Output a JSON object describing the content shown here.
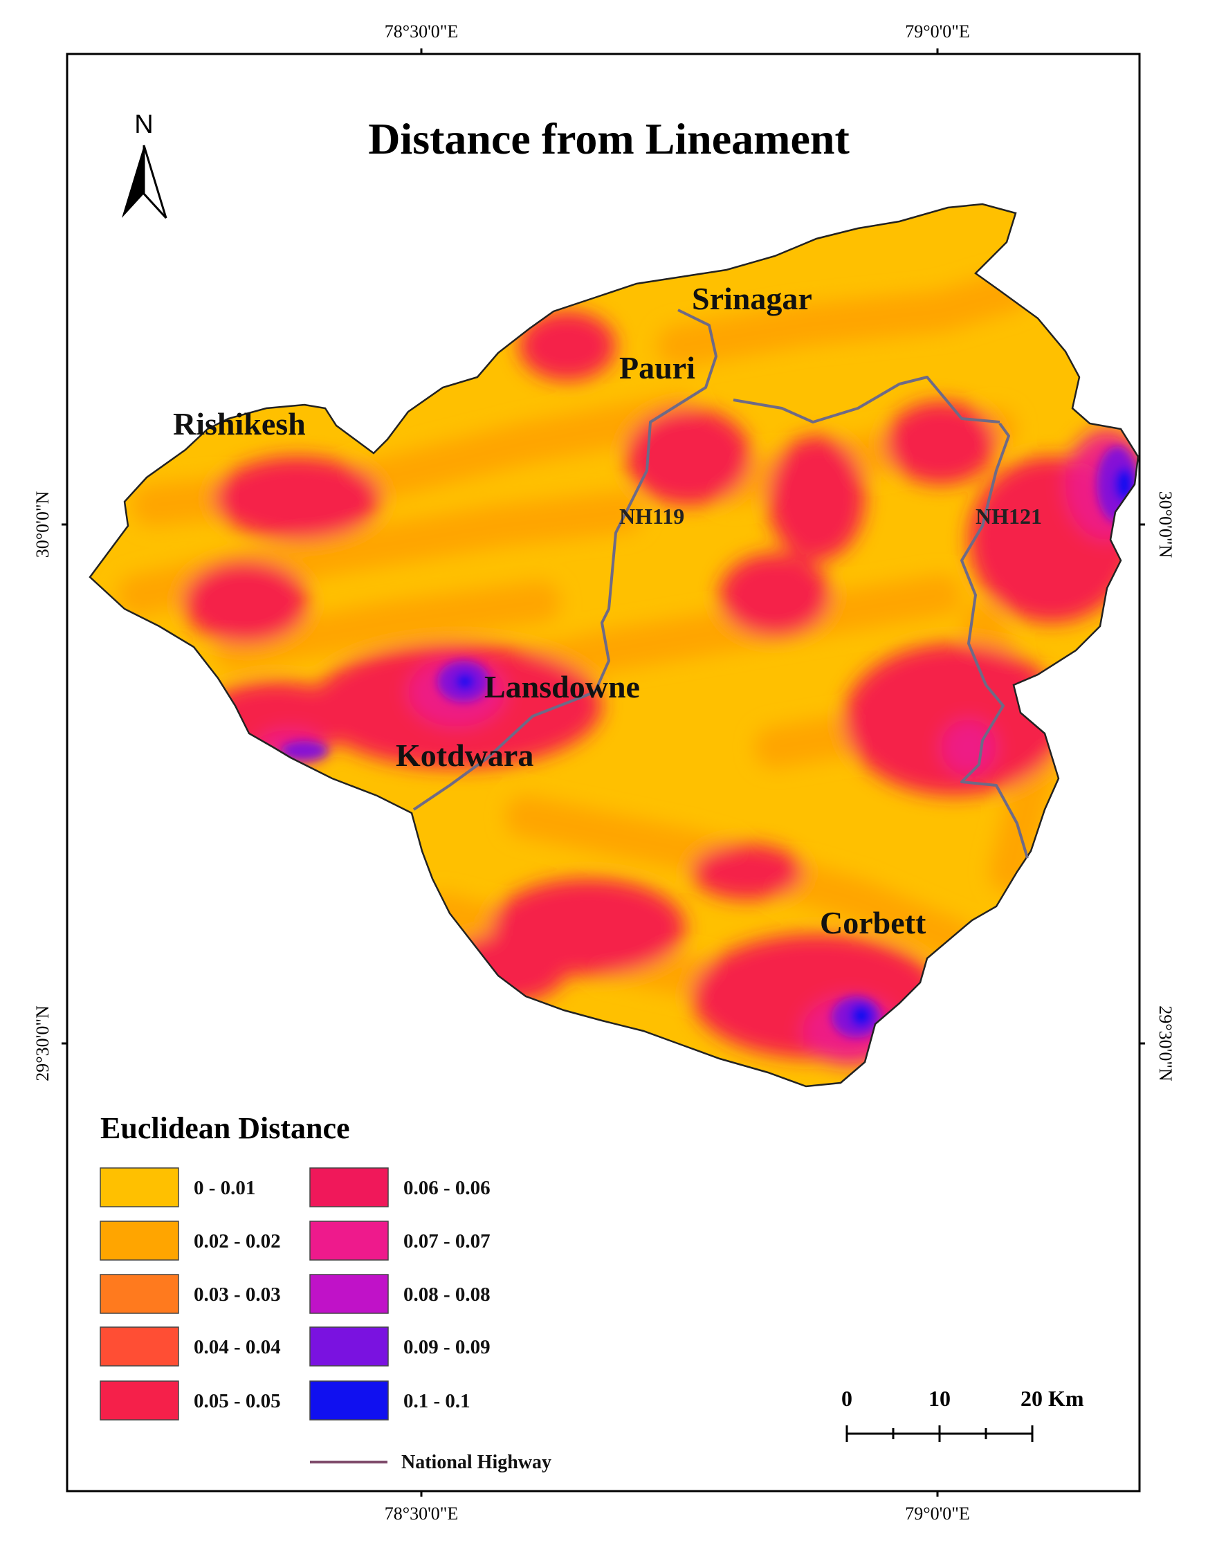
{
  "title": "Distance from Lineament",
  "coordinates": {
    "top_left": "78°30'0\"E",
    "top_right": "79°0'0\"E",
    "bottom_left": "78°30'0\"E",
    "bottom_right": "79°0'0\"E",
    "left_upper": "30°0'0\"N",
    "left_lower": "29°30'0\"N",
    "right_upper": "30°0'0\"N",
    "right_lower": "29°30'0\"N"
  },
  "north_arrow": {
    "label": "N",
    "icon": "north-arrow-icon"
  },
  "places": {
    "srinagar": "Srinagar",
    "pauri": "Pauri",
    "rishikesh": "Rishikesh",
    "lansdowne": "Lansdowne",
    "kotdwara": "Kotdwara",
    "corbett": "Corbett"
  },
  "roads": {
    "nh119": "NH119",
    "nh121": "NH121"
  },
  "legend": {
    "title": "Euclidean Distance",
    "classes": [
      {
        "label": "0 - 0.01",
        "color": "#FFC000"
      },
      {
        "label": "0.02 - 0.02",
        "color": "#FFA500"
      },
      {
        "label": "0.03 - 0.03",
        "color": "#FF7A1E"
      },
      {
        "label": "0.04 - 0.04",
        "color": "#FF4E34"
      },
      {
        "label": "0.05 - 0.05",
        "color": "#F5204A"
      },
      {
        "label": "0.06 - 0.06",
        "color": "#F0185A"
      },
      {
        "label": "0.07 - 0.07",
        "color": "#EE1A8C"
      },
      {
        "label": "0.08 - 0.08",
        "color": "#C012C8"
      },
      {
        "label": "0.09 - 0.09",
        "color": "#7A12E0"
      },
      {
        "label": "0.1 - 0.1",
        "color": "#1010F0"
      }
    ],
    "highway_label": "National Highway",
    "highway_color": "#7E4A6A"
  },
  "scale_bar": {
    "labels": [
      "0",
      "10",
      "20 Km"
    ]
  }
}
